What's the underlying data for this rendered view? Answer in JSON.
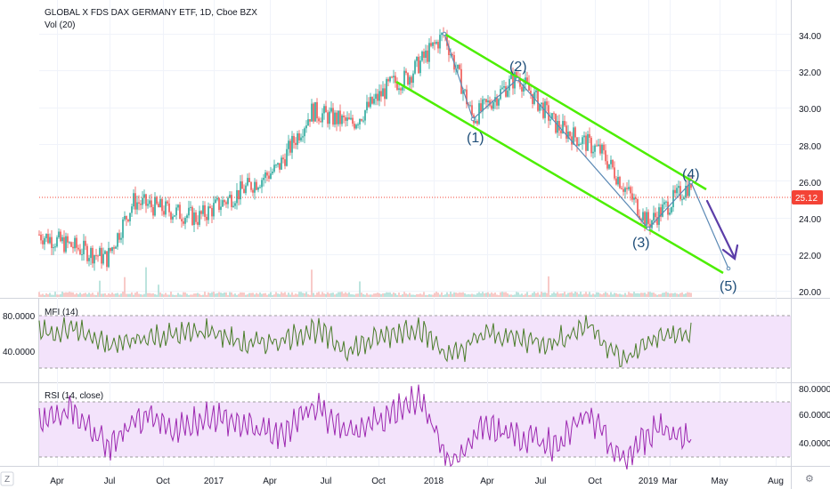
{
  "header": {
    "symbol_line": "GLOBAL X FDS DAX GERMANY ETF, 1D, Cboe BZX",
    "volume_label": "Vol (20)"
  },
  "price_panel": {
    "y_ticks": [
      "34.00",
      "32.00",
      "30.00",
      "28.00",
      "26.00",
      "24.00",
      "22.00",
      "20.00"
    ],
    "last_price": "25.12",
    "last_price_color": "#f44336",
    "wave_labels": [
      "(1)",
      "(2)",
      "(3)",
      "(4)",
      "(5)"
    ],
    "channel_color": "#4cee00",
    "wave_line_color": "#5c8ab5",
    "arrow_color": "#5b3da8"
  },
  "mfi_panel": {
    "label": "MFI (14)",
    "y_ticks": [
      "80.0000",
      "40.0000"
    ],
    "line_color": "#4a7d2a",
    "band_color": "#f3e3fb"
  },
  "rsi_panel": {
    "label": "RSI (14, close)",
    "y_ticks": [
      "80.0000",
      "60.0000",
      "40.0000"
    ],
    "line_color": "#9c27b0",
    "band_color": "#f3e3fb"
  },
  "time_axis": {
    "labels": [
      "Apr",
      "Jul",
      "Oct",
      "2017",
      "Apr",
      "Jul",
      "Oct",
      "2018",
      "Apr",
      "Jul",
      "Oct",
      "2019",
      "Mar",
      "May",
      "Aug"
    ]
  },
  "chart_data": [
    {
      "type": "line",
      "title": "GLOBAL X FDS DAX GERMANY ETF, 1D, Cboe BZX",
      "x": [
        "2016-03",
        "2016-06-27",
        "2016-09",
        "2016-12",
        "2017-02",
        "2017-05",
        "2017-08",
        "2017-11",
        "2017-12-15",
        "2018-01-23",
        "2018-03-20",
        "2018-06-07",
        "2018-08",
        "2018-10",
        "2018-12-26",
        "2019-03-05",
        "2019-04-25"
      ],
      "series": [
        {
          "values": [
            23.1,
            21.8,
            24.9,
            24.0,
            26.7,
            29.8,
            29.1,
            31.3,
            31.6,
            34.0,
            29.4,
            31.7,
            29.0,
            27.6,
            23.7,
            25.9,
            21.2
          ]
        }
      ],
      "ylim": [
        19.8,
        34.8
      ],
      "last_value": 25.12,
      "annotations": [
        "(1)",
        "(2)",
        "(3)",
        "(4)",
        "(5)"
      ]
    },
    {
      "type": "line",
      "title": "MFI (14)",
      "ylim": [
        0,
        100
      ],
      "series": [
        {
          "values": [
            60,
            66,
            45,
            55,
            58,
            63,
            47,
            52,
            65,
            41,
            56,
            68,
            33,
            60,
            54,
            49,
            71,
            28,
            57,
            58
          ]
        }
      ]
    },
    {
      "type": "line",
      "title": "RSI (14, close)",
      "ylim": [
        25,
        85
      ],
      "series": [
        {
          "values": [
            58,
            65,
            40,
            60,
            52,
            62,
            55,
            48,
            70,
            50,
            60,
            75,
            30,
            55,
            48,
            42,
            62,
            30,
            55,
            45
          ]
        }
      ]
    }
  ]
}
